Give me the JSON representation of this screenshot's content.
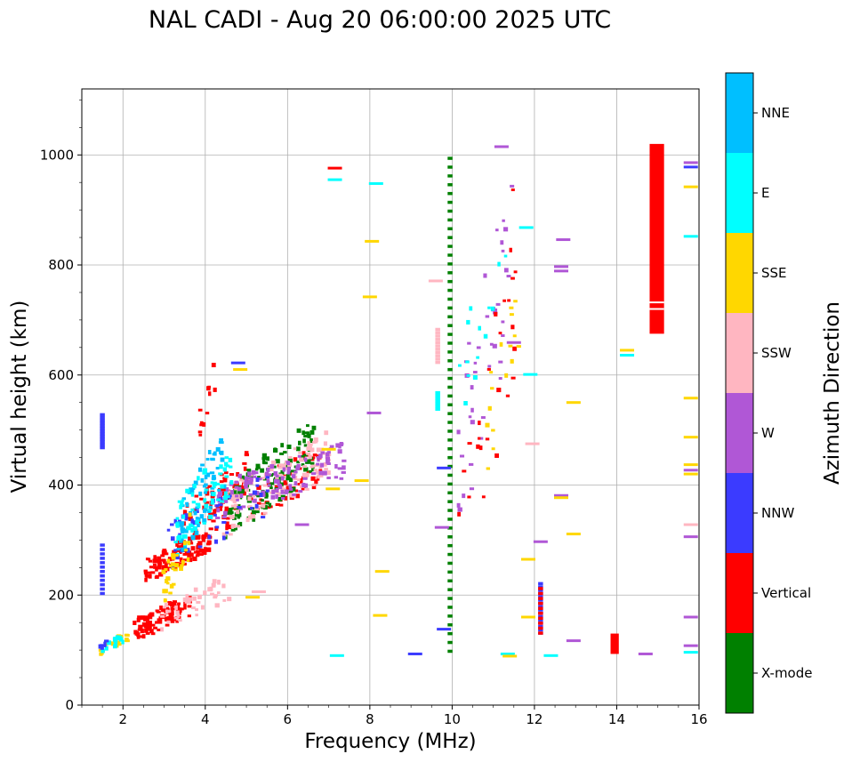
{
  "chart_data": {
    "type": "scatter",
    "title": "NAL CADI - Aug 20 06:00:00 2025 UTC",
    "xlabel": "Frequency (MHz)",
    "ylabel": "Virtual height (km)",
    "xlim": [
      1,
      16
    ],
    "ylim": [
      0,
      1120
    ],
    "xticks": [
      "2",
      "4",
      "6",
      "8",
      "10",
      "12",
      "14",
      "16"
    ],
    "yticks": [
      "0",
      "200",
      "400",
      "600",
      "800",
      "1000"
    ],
    "grid": true,
    "colorbar": {
      "label": "Azimuth Direction",
      "categories": [
        {
          "name": "X-mode",
          "color": "#008000"
        },
        {
          "name": "Vertical",
          "color": "#ff0000"
        },
        {
          "name": "NNW",
          "color": "#3b3bff"
        },
        {
          "name": "W",
          "color": "#b057d6"
        },
        {
          "name": "SSW",
          "color": "#ffb6c1"
        },
        {
          "name": "SSE",
          "color": "#ffd700"
        },
        {
          "name": "E",
          "color": "#00ffff"
        },
        {
          "name": "NNE",
          "color": "#00bfff"
        }
      ]
    },
    "clusters": [
      {
        "category": "Vertical",
        "x": [
          2.2,
          3.6
        ],
        "y": [
          110,
          200
        ],
        "n": 90
      },
      {
        "category": "Vertical",
        "x": [
          2.5,
          4.1
        ],
        "y": [
          220,
          320
        ],
        "n": 120
      },
      {
        "category": "Vertical",
        "x": [
          3.4,
          5.0
        ],
        "y": [
          280,
          460
        ],
        "n": 60
      },
      {
        "category": "Vertical",
        "x": [
          4.0,
          6.8
        ],
        "y": [
          300,
          470
        ],
        "n": 80
      },
      {
        "category": "X-mode",
        "x": [
          4.4,
          6.6
        ],
        "y": [
          290,
          520
        ],
        "n": 140
      },
      {
        "category": "SSW",
        "x": [
          2.8,
          4.6
        ],
        "y": [
          130,
          235
        ],
        "n": 45
      },
      {
        "category": "SSW",
        "x": [
          4.4,
          7.0
        ],
        "y": [
          300,
          500
        ],
        "n": 110
      },
      {
        "category": "W",
        "x": [
          4.2,
          7.4
        ],
        "y": [
          330,
          480
        ],
        "n": 110
      },
      {
        "category": "NNW",
        "x": [
          3.0,
          5.6
        ],
        "y": [
          240,
          430
        ],
        "n": 45
      },
      {
        "category": "NNE",
        "x": [
          3.3,
          4.4
        ],
        "y": [
          250,
          500
        ],
        "n": 70
      },
      {
        "category": "E",
        "x": [
          3.2,
          4.6
        ],
        "y": [
          260,
          480
        ],
        "n": 60
      },
      {
        "category": "SSE",
        "x": [
          2.9,
          3.6
        ],
        "y": [
          160,
          350
        ],
        "n": 30
      },
      {
        "category": "Vertical",
        "x": [
          3.8,
          4.2
        ],
        "y": [
          480,
          630
        ],
        "n": 12
      },
      {
        "category": "SSE",
        "x": [
          1.4,
          2.1
        ],
        "y": [
          88,
          130
        ],
        "n": 18
      },
      {
        "category": "E",
        "x": [
          1.4,
          2.0
        ],
        "y": [
          88,
          130
        ],
        "n": 12
      },
      {
        "category": "NNW",
        "x": [
          1.4,
          1.6
        ],
        "y": [
          95,
          120
        ],
        "n": 8
      },
      {
        "category": "W",
        "x": [
          10.1,
          11.4
        ],
        "y": [
          290,
          960
        ],
        "n": 40
      },
      {
        "category": "Vertical",
        "x": [
          10.1,
          11.5
        ],
        "y": [
          150,
          960
        ],
        "n": 25
      },
      {
        "category": "SSE",
        "x": [
          10.8,
          11.6
        ],
        "y": [
          420,
          800
        ],
        "n": 16
      },
      {
        "category": "E",
        "x": [
          10.1,
          11.3
        ],
        "y": [
          500,
          900
        ],
        "n": 14
      }
    ],
    "columns": [
      {
        "category": "X-mode",
        "x": 9.95,
        "y": [
          95,
          1005
        ],
        "step": 16
      },
      {
        "category": "NNW",
        "x": 1.5,
        "y": [
          465,
          525
        ],
        "step": 5
      },
      {
        "category": "NNW",
        "x": 1.5,
        "y": [
          200,
          290
        ],
        "step": 8
      },
      {
        "category": "SSW",
        "x": 9.65,
        "y": [
          620,
          680
        ],
        "step": 6
      },
      {
        "category": "E",
        "x": 9.65,
        "y": [
          535,
          565
        ],
        "step": 5
      },
      {
        "category": "NNW",
        "x": 12.15,
        "y": [
          128,
          220
        ],
        "step": 6
      },
      {
        "category": "Vertical",
        "x": 12.15,
        "y": [
          128,
          210
        ],
        "step": 9
      }
    ],
    "bars": [
      {
        "category": "Vertical",
        "x": [
          14.8,
          15.15
        ],
        "y": [
          675,
          1020
        ]
      },
      {
        "category": "Vertical",
        "x": [
          13.85,
          14.05
        ],
        "y": [
          93,
          130
        ]
      }
    ],
    "points": [
      {
        "category": "NNW",
        "x": 15.8,
        "y": 978
      },
      {
        "category": "W",
        "x": 15.8,
        "y": 986
      },
      {
        "category": "SSE",
        "x": 15.8,
        "y": 942
      },
      {
        "category": "E",
        "x": 15.8,
        "y": 852
      },
      {
        "category": "SSE",
        "x": 15.8,
        "y": 558
      },
      {
        "category": "SSE",
        "x": 15.8,
        "y": 487
      },
      {
        "category": "SSE",
        "x": 15.8,
        "y": 437
      },
      {
        "category": "W",
        "x": 15.8,
        "y": 427
      },
      {
        "category": "SSE",
        "x": 15.8,
        "y": 420
      },
      {
        "category": "SSW",
        "x": 15.8,
        "y": 328
      },
      {
        "category": "W",
        "x": 15.8,
        "y": 306
      },
      {
        "category": "W",
        "x": 15.8,
        "y": 160
      },
      {
        "category": "W",
        "x": 15.8,
        "y": 108
      },
      {
        "category": "E",
        "x": 15.8,
        "y": 96
      },
      {
        "category": "SSE",
        "x": 14.25,
        "y": 645
      },
      {
        "category": "E",
        "x": 14.25,
        "y": 636
      },
      {
        "category": "W",
        "x": 12.7,
        "y": 846
      },
      {
        "category": "W",
        "x": 12.65,
        "y": 797
      },
      {
        "category": "W",
        "x": 12.65,
        "y": 789
      },
      {
        "category": "SSE",
        "x": 12.95,
        "y": 550
      },
      {
        "category": "W",
        "x": 12.65,
        "y": 381
      },
      {
        "category": "SSE",
        "x": 12.65,
        "y": 377
      },
      {
        "category": "SSE",
        "x": 12.95,
        "y": 311
      },
      {
        "category": "W",
        "x": 12.95,
        "y": 117
      },
      {
        "category": "E",
        "x": 12.4,
        "y": 90
      },
      {
        "category": "W",
        "x": 14.7,
        "y": 93
      },
      {
        "category": "NNW",
        "x": 9.1,
        "y": 93
      },
      {
        "category": "E",
        "x": 7.2,
        "y": 90
      },
      {
        "category": "SSE",
        "x": 8.25,
        "y": 163
      },
      {
        "category": "SSE",
        "x": 8.3,
        "y": 243
      },
      {
        "category": "SSE",
        "x": 8.05,
        "y": 843
      },
      {
        "category": "E",
        "x": 8.15,
        "y": 948
      },
      {
        "category": "W",
        "x": 8.1,
        "y": 531
      },
      {
        "category": "Vertical",
        "x": 7.15,
        "y": 976
      },
      {
        "category": "E",
        "x": 7.15,
        "y": 955
      },
      {
        "category": "SSE",
        "x": 8.0,
        "y": 742
      },
      {
        "category": "W",
        "x": 11.2,
        "y": 1015
      },
      {
        "category": "E",
        "x": 11.8,
        "y": 868
      },
      {
        "category": "E",
        "x": 11.9,
        "y": 601
      },
      {
        "category": "W",
        "x": 11.5,
        "y": 659
      },
      {
        "category": "SSW",
        "x": 11.95,
        "y": 475
      },
      {
        "category": "W",
        "x": 12.15,
        "y": 297
      },
      {
        "category": "SSE",
        "x": 11.85,
        "y": 265
      },
      {
        "category": "SSE",
        "x": 11.85,
        "y": 160
      },
      {
        "category": "E",
        "x": 11.35,
        "y": 93
      },
      {
        "category": "SSE",
        "x": 11.4,
        "y": 89
      },
      {
        "category": "NNW",
        "x": 9.8,
        "y": 431
      },
      {
        "category": "NNW",
        "x": 9.8,
        "y": 138
      },
      {
        "category": "W",
        "x": 9.75,
        "y": 323
      },
      {
        "category": "SSW",
        "x": 9.6,
        "y": 771
      },
      {
        "category": "SSE",
        "x": 4.85,
        "y": 610
      },
      {
        "category": "NNW",
        "x": 4.8,
        "y": 622
      },
      {
        "category": "SSE",
        "x": 5.15,
        "y": 196
      },
      {
        "category": "SSW",
        "x": 5.3,
        "y": 206
      },
      {
        "category": "SSE",
        "x": 7.1,
        "y": 393
      },
      {
        "category": "SSE",
        "x": 7.0,
        "y": 465
      },
      {
        "category": "SSE",
        "x": 7.8,
        "y": 408
      },
      {
        "category": "W",
        "x": 6.35,
        "y": 328
      }
    ]
  }
}
